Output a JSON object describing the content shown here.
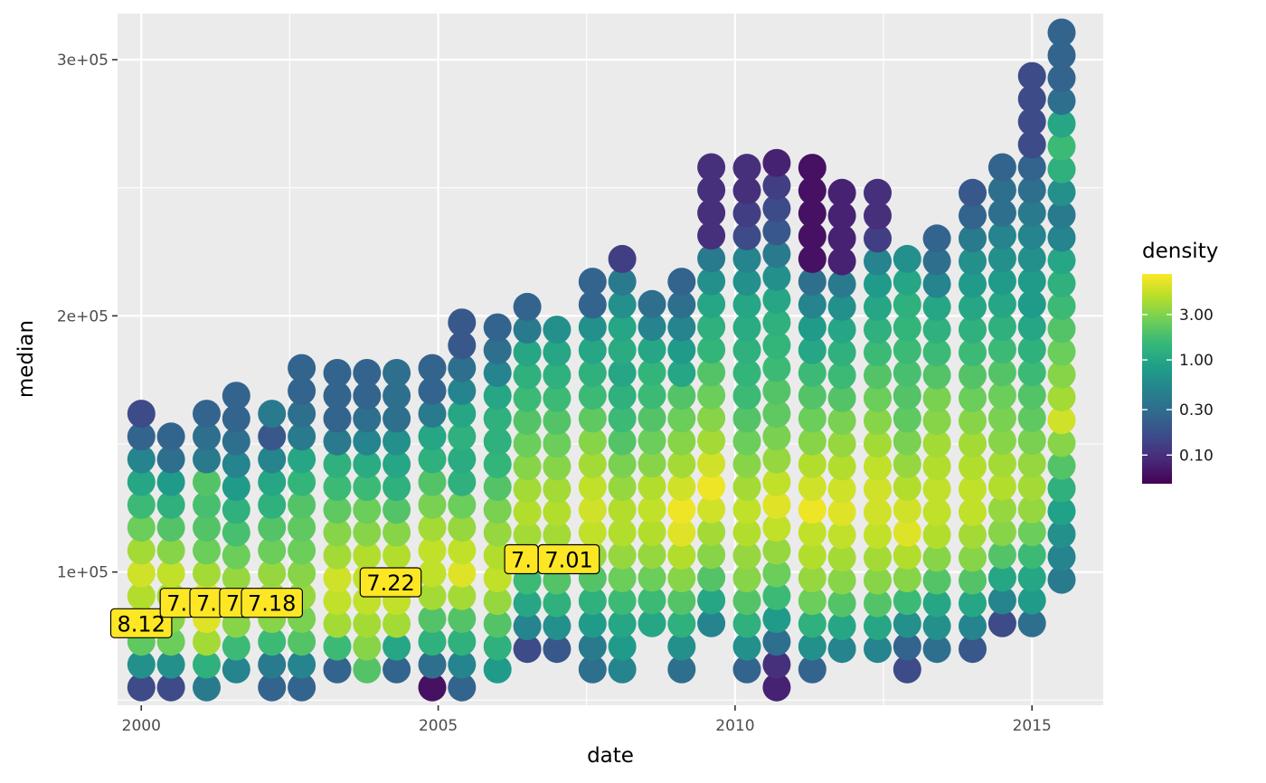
{
  "chart_data": {
    "type": "scatter",
    "xlabel": "date",
    "ylabel": "median",
    "xlim": [
      1999.6,
      2016.2
    ],
    "ylim": [
      48000,
      318000
    ],
    "x_ticks": [
      2000,
      2005,
      2010,
      2015
    ],
    "x_tick_labels": [
      "2000",
      "2005",
      "2010",
      "2015"
    ],
    "y_ticks": [
      100000,
      200000,
      300000
    ],
    "y_tick_labels": [
      "1e+05",
      "2e+05",
      "3e+05"
    ],
    "grid": true,
    "point_step": 8900,
    "columns": [
      {
        "x": 2000.0,
        "y0": 55000,
        "d": [
          -0.8,
          -0.2,
          0.35,
          0.55,
          0.65,
          0.75,
          0.6,
          0.4,
          0.2,
          0.0,
          -0.3,
          -0.6,
          -0.8
        ]
      },
      {
        "x": 2000.5,
        "y0": 55000,
        "d": [
          -0.8,
          -0.2,
          0.4,
          0.5,
          0.6,
          0.7,
          0.5,
          0.3,
          0.1,
          -0.1,
          -0.5,
          -0.6
        ]
      },
      {
        "x": 2001.1,
        "y0": 55000,
        "d": [
          -0.4,
          0.1,
          0.6,
          0.8,
          0.8,
          0.6,
          0.4,
          0.3,
          0.25,
          0.3,
          -0.4,
          -0.5,
          -0.6
        ]
      },
      {
        "x": 2001.6,
        "y0": 62000,
        "d": [
          -0.3,
          0.2,
          0.5,
          0.65,
          0.55,
          0.4,
          0.25,
          0.1,
          -0.1,
          -0.3,
          -0.5,
          -0.6,
          -0.6
        ]
      },
      {
        "x": 2002.2,
        "y0": 55000,
        "d": [
          -0.6,
          -0.4,
          0.2,
          0.5,
          0.6,
          0.55,
          0.4,
          0.3,
          0.1,
          0.0,
          -0.3,
          -0.7,
          -0.4
        ]
      },
      {
        "x": 2002.7,
        "y0": 55000,
        "d": [
          -0.6,
          -0.3,
          0.3,
          0.45,
          0.55,
          0.5,
          0.4,
          0.35,
          0.3,
          0.15,
          0.0,
          -0.4,
          -0.5,
          -0.6,
          -0.6
        ]
      },
      {
        "x": 2003.3,
        "y0": 62000,
        "d": [
          -0.6,
          0.2,
          0.6,
          0.7,
          0.75,
          0.6,
          0.5,
          0.35,
          0.2,
          0.1,
          -0.4,
          -0.6,
          -0.6,
          -0.6
        ]
      },
      {
        "x": 2003.8,
        "y0": 62000,
        "d": [
          0.3,
          0.5,
          0.6,
          0.7,
          0.7,
          0.65,
          0.5,
          0.4,
          0.2,
          0.05,
          -0.3,
          -0.5,
          -0.6,
          -0.6
        ]
      },
      {
        "x": 2004.3,
        "y0": 62000,
        "d": [
          -0.6,
          0.0,
          0.6,
          0.7,
          0.7,
          0.65,
          0.5,
          0.3,
          0.1,
          0.0,
          -0.2,
          -0.5,
          -0.5,
          -0.5
        ]
      },
      {
        "x": 2004.9,
        "y0": 55000,
        "d": [
          -1.2,
          -0.5,
          0.1,
          0.3,
          0.6,
          0.7,
          0.7,
          0.6,
          0.45,
          0.3,
          0.1,
          0.0,
          -0.4,
          -0.6,
          -0.6
        ]
      },
      {
        "x": 2005.4,
        "y0": 55000,
        "d": [
          -0.6,
          -0.3,
          0.1,
          0.3,
          0.6,
          0.8,
          0.7,
          0.55,
          0.4,
          0.1,
          0.05,
          0.1,
          0.0,
          -0.3,
          -0.5,
          -0.7,
          -0.7
        ]
      },
      {
        "x": 2006.0,
        "y0": 62000,
        "d": [
          -0.1,
          0.1,
          0.3,
          0.55,
          0.7,
          0.65,
          0.55,
          0.45,
          0.3,
          0.15,
          0.1,
          0.1,
          0.0,
          -0.3,
          -0.5,
          -0.6
        ]
      },
      {
        "x": 2006.5,
        "y0": 70000,
        "d": [
          -0.8,
          -0.3,
          0.0,
          0.2,
          0.5,
          0.6,
          0.65,
          0.6,
          0.5,
          0.4,
          0.3,
          0.2,
          0.1,
          0.0,
          -0.4,
          -0.6
        ]
      },
      {
        "x": 2007.0,
        "y0": 70000,
        "d": [
          -0.7,
          -0.2,
          0.1,
          0.3,
          0.5,
          0.6,
          0.65,
          0.6,
          0.5,
          0.4,
          0.3,
          0.2,
          0.1,
          0.0,
          -0.2
        ]
      },
      {
        "x": 2007.6,
        "y0": 62000,
        "d": [
          -0.5,
          -0.4,
          -0.1,
          0.1,
          0.3,
          0.55,
          0.7,
          0.75,
          0.7,
          0.6,
          0.5,
          0.35,
          0.2,
          0.1,
          0.0,
          -0.2,
          -0.6,
          -0.6
        ]
      },
      {
        "x": 2008.1,
        "y0": 62000,
        "d": [
          -0.3,
          -0.1,
          0.0,
          0.2,
          0.4,
          0.55,
          0.65,
          0.65,
          0.55,
          0.45,
          0.3,
          0.2,
          0.1,
          0.0,
          0.05,
          0.0,
          -0.2,
          -0.4,
          -0.9
        ]
      },
      {
        "x": 2008.6,
        "y0": 80000,
        "d": [
          0.0,
          0.2,
          0.4,
          0.55,
          0.65,
          0.7,
          0.65,
          0.5,
          0.4,
          0.3,
          0.2,
          0.15,
          0.0,
          -0.3,
          -0.5
        ]
      },
      {
        "x": 2009.1,
        "y0": 62000,
        "d": [
          -0.5,
          -0.2,
          0.1,
          0.3,
          0.5,
          0.65,
          0.8,
          0.85,
          0.75,
          0.6,
          0.5,
          0.4,
          0.3,
          0.0,
          -0.1,
          -0.3,
          -0.5,
          -0.6
        ]
      },
      {
        "x": 2009.6,
        "y0": 80000,
        "d": [
          -0.3,
          0.0,
          0.3,
          0.5,
          0.6,
          0.75,
          0.85,
          0.75,
          0.6,
          0.5,
          0.4,
          0.3,
          0.15,
          0.1,
          0.0,
          -0.2,
          -0.4,
          -1.0,
          -1.0,
          -1.0,
          -1.0
        ]
      },
      {
        "x": 2010.2,
        "y0": 62000,
        "d": [
          -0.6,
          -0.2,
          0.1,
          0.3,
          0.5,
          0.55,
          0.65,
          0.7,
          0.6,
          0.5,
          0.4,
          0.3,
          0.2,
          0.15,
          0.1,
          0.05,
          0.0,
          -0.2,
          -0.3,
          -0.8,
          -0.9,
          -1.0,
          -1.0
        ]
      },
      {
        "x": 2010.7,
        "y0": 55000,
        "d": [
          -1.1,
          -1.0,
          -0.5,
          -0.1,
          0.2,
          0.4,
          0.55,
          0.7,
          0.8,
          0.7,
          0.55,
          0.45,
          0.35,
          0.3,
          0.2,
          0.15,
          0.1,
          0.0,
          -0.2,
          -0.4,
          -0.7,
          -0.8,
          -0.9,
          -1.1
        ]
      },
      {
        "x": 2011.3,
        "y0": 62000,
        "d": [
          -0.6,
          -0.2,
          0.1,
          0.4,
          0.55,
          0.65,
          0.7,
          0.85,
          0.75,
          0.65,
          0.5,
          0.4,
          0.3,
          0.2,
          0.0,
          -0.1,
          -0.3,
          -0.5,
          -1.2,
          -1.2,
          -1.2,
          -1.2,
          -1.2
        ]
      },
      {
        "x": 2011.8,
        "y0": 70000,
        "d": [
          -0.3,
          0.0,
          0.3,
          0.5,
          0.6,
          0.7,
          0.8,
          0.75,
          0.65,
          0.55,
          0.45,
          0.3,
          0.2,
          0.1,
          0.0,
          -0.2,
          -0.4,
          -1.1,
          -1.1,
          -1.1,
          -1.1
        ]
      },
      {
        "x": 2012.4,
        "y0": 70000,
        "d": [
          -0.3,
          0.0,
          0.3,
          0.5,
          0.6,
          0.7,
          0.75,
          0.75,
          0.7,
          0.6,
          0.5,
          0.4,
          0.3,
          0.2,
          0.1,
          0.0,
          -0.1,
          -0.3,
          -0.9,
          -1.0,
          -1.0
        ]
      },
      {
        "x": 2012.9,
        "y0": 62000,
        "d": [
          -0.8,
          -0.6,
          -0.2,
          0.2,
          0.5,
          0.65,
          0.8,
          0.75,
          0.65,
          0.55,
          0.45,
          0.35,
          0.3,
          0.25,
          0.2,
          0.15,
          0.1,
          0.0,
          -0.2
        ]
      },
      {
        "x": 2013.4,
        "y0": 70000,
        "d": [
          -0.5,
          -0.2,
          0.0,
          0.3,
          0.5,
          0.65,
          0.7,
          0.7,
          0.65,
          0.6,
          0.5,
          0.45,
          0.3,
          0.2,
          0.1,
          0.0,
          -0.3,
          -0.5,
          -0.6
        ]
      },
      {
        "x": 2014.0,
        "y0": 70000,
        "d": [
          -0.7,
          -0.3,
          0.0,
          0.3,
          0.5,
          0.6,
          0.7,
          0.7,
          0.65,
          0.6,
          0.5,
          0.4,
          0.3,
          0.2,
          0.1,
          0.0,
          -0.1,
          -0.2,
          -0.4,
          -0.6,
          -0.7
        ]
      },
      {
        "x": 2014.5,
        "y0": 80000,
        "d": [
          -0.8,
          -0.3,
          0.0,
          0.3,
          0.5,
          0.55,
          0.65,
          0.6,
          0.5,
          0.45,
          0.4,
          0.3,
          0.2,
          0.1,
          0.0,
          -0.1,
          -0.2,
          -0.3,
          -0.5,
          -0.5,
          -0.6
        ]
      },
      {
        "x": 2015.0,
        "y0": 80000,
        "d": [
          -0.5,
          -0.1,
          0.0,
          0.2,
          0.4,
          0.55,
          0.6,
          0.55,
          0.45,
          0.35,
          0.3,
          0.2,
          0.1,
          0.0,
          -0.1,
          -0.1,
          -0.2,
          -0.3,
          -0.4,
          -0.5,
          -0.6,
          -0.8,
          -0.8,
          -0.8,
          -0.8
        ]
      },
      {
        "x": 2015.5,
        "y0": 97000,
        "d": [
          -0.4,
          -0.3,
          -0.2,
          -0.05,
          0.1,
          0.3,
          0.5,
          0.75,
          0.6,
          0.5,
          0.4,
          0.3,
          0.2,
          0.1,
          0.0,
          -0.3,
          -0.4,
          -0.2,
          0.1,
          0.2,
          0.0,
          -0.5,
          -0.6,
          -0.6,
          -0.6
        ]
      }
    ],
    "annotations": [
      {
        "label": "8.12",
        "x": 2000.0,
        "y": 80000
      },
      {
        "label": "7.",
        "x": 2000.6,
        "y": 88000
      },
      {
        "label": "7.",
        "x": 2001.1,
        "y": 88000
      },
      {
        "label": "7.",
        "x": 2001.6,
        "y": 88000
      },
      {
        "label": "7.18",
        "x": 2002.2,
        "y": 88000
      },
      {
        "label": "7.22",
        "x": 2004.2,
        "y": 96000
      },
      {
        "label": "7.",
        "x": 2006.4,
        "y": 105000
      },
      {
        "label": "7.01",
        "x": 2007.2,
        "y": 105000
      }
    ],
    "legend": {
      "title": "density",
      "placement": "right",
      "scale": "log",
      "range": [
        0.05,
        8
      ],
      "ticks": [
        0.1,
        0.3,
        1.0,
        3.0
      ],
      "tick_labels": [
        "0.10",
        "0.30",
        "1.00",
        "3.00"
      ]
    }
  },
  "colors": {
    "panel_background": "#ebebeb",
    "gridline": "#ffffff",
    "annotation_fill": "#fde725",
    "palette": "viridis"
  }
}
